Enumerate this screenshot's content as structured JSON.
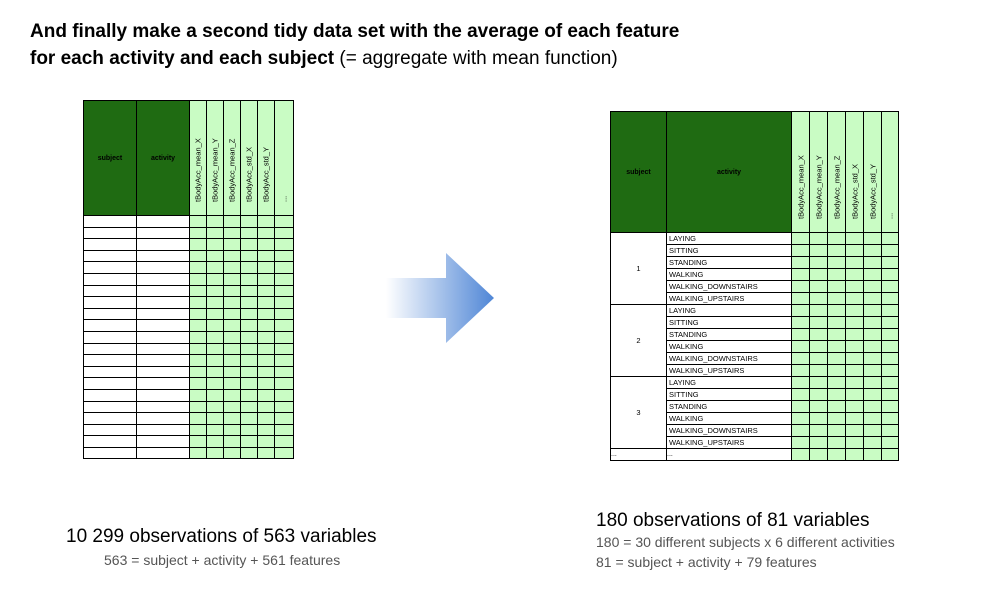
{
  "title": {
    "line1_bold": "And finally make a second tidy data set with the average of each feature",
    "line2_bold": "for each activity and each subject",
    "line2_rest": " (= aggregate with mean function)"
  },
  "left_table": {
    "subject_header": "subject",
    "activity_header": "activity",
    "feature_headers": [
      "tBodyAcc_mean_X",
      "tBodyAcc_mean_Y",
      "tBodyAcc_mean_Z",
      "tBodyAcc_std_X",
      "tBodyAcc_std_Y",
      "..."
    ],
    "row_count": 21,
    "caption": "10 299 observations of 563 variables",
    "subcaption": "563 = subject + activity + 561 features"
  },
  "right_table": {
    "subject_header": "subject",
    "activity_header": "activity",
    "feature_headers": [
      "tBodyAcc_mean_X",
      "tBodyAcc_mean_Y",
      "tBodyAcc_mean_Z",
      "tBodyAcc_std_X",
      "tBodyAcc_std_Y",
      "..."
    ],
    "subjects": [
      "1",
      "2",
      "3"
    ],
    "activities": [
      "LAYING",
      "SITTING",
      "STANDING",
      "WALKING",
      "WALKING_DOWNSTAIRS",
      "WALKING_UPSTAIRS"
    ],
    "ellipsis": "...",
    "caption": "180 observations of 81 variables",
    "subcaption1": "180 = 30 different subjects x 6 different activities",
    "subcaption2": "81 = subject + activity + 79 features"
  },
  "colors": {
    "header_green": "#1f6b12",
    "feature_green": "#c9fcc4",
    "arrow_blue": "#5b8fd8"
  }
}
